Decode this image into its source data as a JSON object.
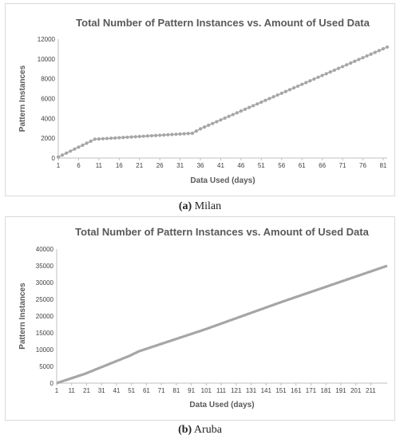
{
  "figures": [
    {
      "caption_letter": "(a)",
      "caption_text": "Milan",
      "chart_data": {
        "type": "line",
        "title": "Total Number of Pattern Instances vs. Amount of Used Data",
        "xlabel": "Data Used (days)",
        "ylabel": "Pattern Instances",
        "x_ticks": [
          1,
          6,
          11,
          16,
          21,
          26,
          31,
          36,
          41,
          46,
          51,
          56,
          61,
          66,
          71,
          76,
          81
        ],
        "xlim": [
          1,
          82
        ],
        "ylim": [
          0,
          12000
        ],
        "y_ticks": [
          0,
          2000,
          4000,
          6000,
          8000,
          10000,
          12000
        ],
        "grid": false,
        "markers": true,
        "color": "#a6a6a6",
        "anchors": [
          [
            1,
            100
          ],
          [
            10,
            1900
          ],
          [
            34,
            2500
          ],
          [
            36,
            2950
          ],
          [
            82,
            11200
          ]
        ]
      }
    },
    {
      "caption_letter": "(b)",
      "caption_text": "Aruba",
      "chart_data": {
        "type": "line",
        "title": "Total Number of Pattern Instances vs. Amount of Used Data",
        "xlabel": "Data Used (days)",
        "ylabel": "Pattern Instances",
        "x_ticks": [
          1,
          11,
          21,
          31,
          41,
          51,
          61,
          71,
          81,
          91,
          101,
          111,
          121,
          131,
          141,
          151,
          161,
          171,
          181,
          191,
          201,
          211
        ],
        "xlim": [
          1,
          222
        ],
        "ylim": [
          0,
          40000
        ],
        "y_ticks": [
          0,
          5000,
          10000,
          15000,
          20000,
          25000,
          30000,
          35000,
          40000
        ],
        "grid": false,
        "markers": false,
        "color": "#a6a6a6",
        "anchors": [
          [
            1,
            0
          ],
          [
            20,
            2800
          ],
          [
            50,
            8200
          ],
          [
            56,
            9500
          ],
          [
            100,
            16000
          ],
          [
            150,
            24000
          ],
          [
            222,
            35000
          ]
        ]
      }
    }
  ]
}
